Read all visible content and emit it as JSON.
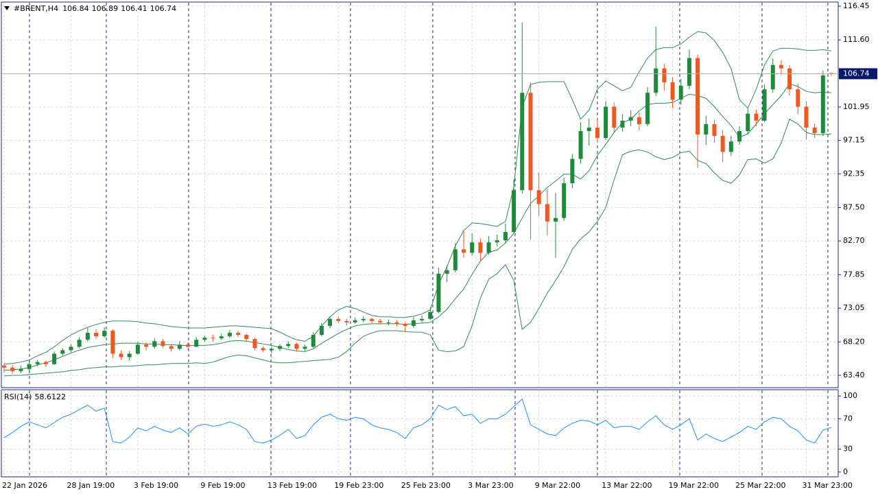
{
  "chart_data": [
    {
      "type": "candlestick",
      "title": "#BRENT,H4",
      "up_color": "#1f8a3c",
      "down_color": "#f0581e",
      "grid": true,
      "ylim": [
        61.62,
        117.04
      ],
      "yticks": [
        116.45,
        {
          "value": 111.6,
          "label": "111.60"
        },
        101.95,
        97.15,
        92.35,
        {
          "value": 87.5,
          "label": "87.50"
        },
        {
          "value": 82.7,
          "label": "82.70"
        },
        77.85,
        73.05,
        {
          "value": 68.2,
          "label": "68.20"
        },
        {
          "value": 63.4,
          "label": "63.40"
        }
      ],
      "categories": [
        "22 Jan 2026",
        null,
        null,
        null,
        null,
        null,
        null,
        null,
        "28 Jan 19:00",
        null,
        null,
        null,
        null,
        null,
        null,
        null,
        "3 Feb 19:00",
        null,
        null,
        null,
        null,
        null,
        null,
        null,
        "9 Feb 19:00",
        null,
        null,
        null,
        null,
        null,
        null,
        null,
        "13 Feb 19:00",
        null,
        null,
        null,
        null,
        null,
        null,
        null,
        "19 Feb 23:00",
        null,
        null,
        null,
        null,
        null,
        null,
        null,
        "25 Feb 23:00",
        null,
        null,
        null,
        null,
        null,
        null,
        null,
        "3 Mar 23:00",
        null,
        null,
        null,
        null,
        null,
        null,
        null,
        "9 Mar 22:00",
        null,
        null,
        null,
        null,
        null,
        null,
        null,
        "13 Mar 22:00",
        null,
        null,
        null,
        null,
        null,
        null,
        null,
        "19 Mar 22:00",
        null,
        null,
        null,
        null,
        null,
        null,
        null,
        "25 Mar 22:00",
        null,
        null,
        null,
        null,
        null,
        null,
        null,
        "31 Mar 23:00",
        null,
        null,
        null
      ],
      "ohlc": [
        [
          64.8,
          65.1,
          63.8,
          64.5
        ],
        [
          64.5,
          64.9,
          63.6,
          64
        ],
        [
          64,
          64.8,
          63.7,
          64.3
        ],
        [
          64.3,
          65.4,
          64,
          65
        ],
        [
          65,
          65.6,
          64.7,
          65.3
        ],
        [
          65.3,
          65.5,
          64.6,
          65
        ],
        [
          65,
          66.8,
          64.9,
          66.5
        ],
        [
          66.5,
          67.3,
          66.2,
          67
        ],
        [
          67,
          67.9,
          66.7,
          67.5
        ],
        [
          67.5,
          68.9,
          67.3,
          68.5
        ],
        [
          68.5,
          70.2,
          68.2,
          69.5
        ],
        [
          69.5,
          70,
          68.6,
          69
        ],
        [
          69,
          70.3,
          68.8,
          69.8
        ],
        [
          69.8,
          70,
          65.9,
          66.5
        ],
        [
          66.5,
          67,
          65.6,
          66
        ],
        [
          66,
          66.9,
          65.5,
          66.5
        ],
        [
          66.5,
          68.2,
          66.3,
          67.8
        ],
        [
          67.8,
          68.1,
          67,
          67.5
        ],
        [
          67.5,
          68.7,
          67.2,
          68.3
        ],
        [
          68.3,
          68.6,
          67.3,
          67.6
        ],
        [
          67.6,
          67.9,
          66.8,
          67.2
        ],
        [
          67.2,
          68.3,
          67,
          67.8
        ],
        [
          67.8,
          68.1,
          67.1,
          67.5
        ],
        [
          67.5,
          68.9,
          67.4,
          68.5
        ],
        [
          68.5,
          69.1,
          68.2,
          68.8
        ],
        [
          68.8,
          69.2,
          68.3,
          68.7
        ],
        [
          68.7,
          69.4,
          68.5,
          69
        ],
        [
          69,
          69.9,
          68.8,
          69.5
        ],
        [
          69.5,
          69.8,
          68.9,
          69.2
        ],
        [
          69.2,
          69.4,
          68.3,
          68.6
        ],
        [
          68.6,
          68.8,
          67,
          67.3
        ],
        [
          67.3,
          67.6,
          66.7,
          67
        ],
        [
          67,
          67.5,
          66.6,
          67.2
        ],
        [
          67.2,
          67.9,
          66.9,
          67.6
        ],
        [
          67.6,
          68.3,
          67.3,
          67.9
        ],
        [
          67.9,
          68.1,
          66.8,
          67.2
        ],
        [
          67.2,
          67.8,
          66.9,
          67.5
        ],
        [
          67.5,
          69.6,
          67.3,
          69.2
        ],
        [
          69.2,
          70.9,
          69,
          70.5
        ],
        [
          70.5,
          71.9,
          70.2,
          71.5
        ],
        [
          71.5,
          71.8,
          70.9,
          71.2
        ],
        [
          71.2,
          71.5,
          70.6,
          71
        ],
        [
          71,
          71.7,
          70.8,
          71.3
        ],
        [
          71.3,
          71.9,
          71,
          71.5
        ],
        [
          71.5,
          71.7,
          70.9,
          71.2
        ],
        [
          71.2,
          71.5,
          70.7,
          71
        ],
        [
          71,
          71.4,
          70.6,
          71
        ],
        [
          71,
          71.3,
          70.4,
          70.8
        ],
        [
          70.8,
          71,
          69.6,
          70.5
        ],
        [
          70.5,
          71.8,
          70.2,
          71.3
        ],
        [
          71.3,
          72,
          71,
          71.5
        ],
        [
          71.5,
          73.2,
          71.3,
          72.5
        ],
        [
          72.5,
          78.9,
          72.3,
          78
        ],
        [
          78,
          79.2,
          76.8,
          78.5
        ],
        [
          78.5,
          82.4,
          78.2,
          81.5
        ],
        [
          81.5,
          84.2,
          80.3,
          81
        ],
        [
          81,
          83.8,
          80.6,
          82.5
        ],
        [
          82.5,
          83.1,
          79.8,
          81
        ],
        [
          81,
          83.4,
          80.7,
          82.5
        ],
        [
          82.5,
          83.6,
          81.9,
          82.8
        ],
        [
          82.8,
          85.2,
          82.4,
          84
        ],
        [
          84,
          91.5,
          83.8,
          90
        ],
        [
          90,
          114.1,
          89.5,
          104
        ],
        [
          104,
          105.5,
          82.9,
          90
        ],
        [
          90,
          92.5,
          86.3,
          88
        ],
        [
          88,
          90.2,
          83.5,
          85.5
        ],
        [
          85.5,
          89.6,
          80.3,
          86
        ],
        [
          86,
          91.8,
          85.6,
          91
        ],
        [
          91,
          95.2,
          90.3,
          94.5
        ],
        [
          94.5,
          99.8,
          93.8,
          98.5
        ],
        [
          98.5,
          100.3,
          96.4,
          99
        ],
        [
          99,
          100.1,
          96.8,
          97.5
        ],
        [
          97.5,
          102.8,
          97.2,
          102
        ],
        [
          102,
          102.6,
          98.3,
          99
        ],
        [
          99,
          100.9,
          98.4,
          100
        ],
        [
          100,
          101.5,
          99.2,
          100.5
        ],
        [
          100.5,
          101.2,
          98.6,
          99.5
        ],
        [
          99.5,
          104.8,
          99.2,
          104
        ],
        [
          104,
          113.5,
          103.5,
          107.5
        ],
        [
          107.5,
          108.2,
          104.3,
          105.5
        ],
        [
          105.5,
          106.2,
          101.8,
          103
        ],
        [
          103,
          106,
          102.3,
          105
        ],
        [
          105,
          110.2,
          104.5,
          109
        ],
        [
          109,
          109.5,
          93.2,
          98
        ],
        [
          98,
          100.7,
          96.5,
          99.5
        ],
        [
          99.5,
          100.1,
          96.8,
          97.8
        ],
        [
          97.8,
          98.6,
          94,
          95.5
        ],
        [
          95.5,
          97.8,
          94.9,
          97
        ],
        [
          97,
          99.2,
          96.5,
          98.5
        ],
        [
          98.5,
          101.7,
          98,
          101
        ],
        [
          101,
          101.6,
          99.2,
          100
        ],
        [
          100,
          105.2,
          99.8,
          104.5
        ],
        [
          104.5,
          108.9,
          104,
          108
        ],
        [
          108,
          108.7,
          106.6,
          107.5
        ],
        [
          107.5,
          108,
          103.6,
          104.5
        ],
        [
          104.5,
          105.3,
          100.9,
          102
        ],
        [
          102,
          102.8,
          97.3,
          99
        ],
        [
          99,
          99.6,
          97.5,
          98.2
        ],
        [
          98.2,
          107.2,
          97.8,
          106.5
        ],
        [
          106.84,
          106.89,
          106.41,
          106.74
        ]
      ],
      "bands": {
        "color": "#2e8b57",
        "upper": [
          65.0,
          65.1,
          65.3,
          65.6,
          66.2,
          66.7,
          67.5,
          68.4,
          69.2,
          69.8,
          70.3,
          70.7,
          71.0,
          71.2,
          71.2,
          71.2,
          71.1,
          70.9,
          70.8,
          70.6,
          70.4,
          70.3,
          70.2,
          70.2,
          70.2,
          70.3,
          70.4,
          70.5,
          70.5,
          70.4,
          70.3,
          70.2,
          70.1,
          69.6,
          69.0,
          68.5,
          68.3,
          69.0,
          70.5,
          71.8,
          72.8,
          73.3,
          73.0,
          72.5,
          72.0,
          71.8,
          71.8,
          71.7,
          71.7,
          71.9,
          72.2,
          72.8,
          76.5,
          79.0,
          82.0,
          84.2,
          85.3,
          85.2,
          85.0,
          84.8,
          85.5,
          90.5,
          102.0,
          105.2,
          105.5,
          105.6,
          105.6,
          105.6,
          103.0,
          100.2,
          101.5,
          104.5,
          105.7,
          105.0,
          104.3,
          104.8,
          107.0,
          109.0,
          110.2,
          110.5,
          110.5,
          111.0,
          112.0,
          112.8,
          112.6,
          111.5,
          109.8,
          107.5,
          103.0,
          101.8,
          104.5,
          108.0,
          110.0,
          110.4,
          110.4,
          110.3,
          110.1,
          110.1,
          110.2,
          110.0
        ],
        "middle": [
          64.1,
          64.2,
          64.3,
          64.5,
          64.9,
          65.2,
          65.6,
          66.1,
          66.6,
          67.0,
          67.4,
          67.6,
          67.8,
          67.9,
          68.0,
          68.0,
          68.0,
          67.9,
          67.9,
          67.8,
          67.8,
          67.7,
          67.7,
          67.7,
          67.7,
          67.8,
          68.0,
          68.3,
          68.4,
          68.3,
          68.1,
          67.9,
          67.7,
          67.4,
          67.1,
          66.9,
          66.8,
          67.2,
          68.0,
          68.7,
          69.4,
          70.0,
          70.5,
          70.7,
          70.8,
          70.8,
          70.8,
          70.8,
          70.7,
          70.8,
          70.9,
          71.0,
          71.8,
          72.9,
          74.4,
          75.8,
          77.9,
          79.8,
          81.1,
          81.4,
          82.4,
          83.8,
          86.0,
          88.1,
          89.2,
          90.4,
          91.3,
          92.3,
          92.3,
          91.6,
          92.8,
          95.0,
          96.6,
          98.3,
          99.7,
          100.2,
          101.4,
          102.3,
          102.5,
          102.5,
          102.6,
          103.2,
          103.8,
          103.6,
          103.2,
          102.0,
          100.6,
          99.3,
          97.6,
          98.1,
          99.5,
          101.0,
          102.3,
          103.6,
          105.3,
          104.9,
          104.2,
          104.0,
          104.1,
          104.0
        ],
        "lower": [
          63.3,
          63.4,
          63.4,
          63.5,
          63.6,
          63.7,
          63.8,
          63.9,
          64.1,
          64.2,
          64.4,
          64.5,
          64.6,
          64.6,
          64.7,
          64.7,
          64.8,
          64.9,
          64.9,
          65.0,
          65.1,
          65.1,
          65.1,
          65.2,
          65.1,
          65.3,
          65.7,
          66.1,
          66.3,
          66.2,
          65.9,
          65.6,
          65.3,
          65.2,
          65.2,
          65.3,
          65.4,
          65.5,
          65.6,
          65.7,
          66.0,
          66.8,
          68.0,
          69.0,
          69.5,
          69.8,
          69.8,
          69.8,
          69.7,
          69.6,
          69.6,
          69.2,
          67.0,
          66.8,
          66.9,
          67.5,
          70.5,
          74.5,
          77.2,
          78.0,
          79.3,
          77.0,
          70.0,
          71.0,
          73.0,
          75.2,
          77.0,
          79.0,
          81.5,
          83.0,
          84.0,
          85.5,
          87.5,
          91.5,
          95.1,
          95.6,
          95.8,
          95.5,
          94.8,
          94.4,
          94.7,
          95.4,
          95.6,
          94.3,
          93.8,
          92.5,
          91.4,
          91.0,
          92.2,
          94.4,
          94.5,
          93.9,
          94.5,
          96.8,
          100.2,
          99.5,
          98.3,
          98.0,
          98.0,
          98.1
        ]
      }
    },
    {
      "type": "line",
      "title": "RSI(14)",
      "color": "#1e90ff",
      "grid": true,
      "ylim": [
        -6.4,
        108.2
      ],
      "yticks": [
        100,
        70,
        30,
        0
      ],
      "values": [
        45,
        52,
        60,
        66,
        62,
        58,
        65,
        72,
        76,
        82,
        88,
        80,
        84,
        40,
        38,
        46,
        58,
        54,
        60,
        55,
        52,
        58,
        50,
        60,
        63,
        60,
        62,
        66,
        62,
        56,
        40,
        38,
        42,
        48,
        56,
        44,
        48,
        62,
        72,
        76,
        70,
        68,
        72,
        70,
        62,
        58,
        56,
        52,
        44,
        58,
        62,
        70,
        88,
        82,
        86,
        74,
        76,
        64,
        70,
        70,
        76,
        86,
        96,
        62,
        56,
        50,
        48,
        58,
        64,
        68,
        67,
        62,
        68,
        58,
        60,
        60,
        56,
        66,
        74,
        62,
        56,
        62,
        70,
        42,
        50,
        44,
        40,
        46,
        52,
        60,
        56,
        66,
        72,
        70,
        60,
        54,
        42,
        38,
        55,
        58.6122
      ]
    }
  ]
}
